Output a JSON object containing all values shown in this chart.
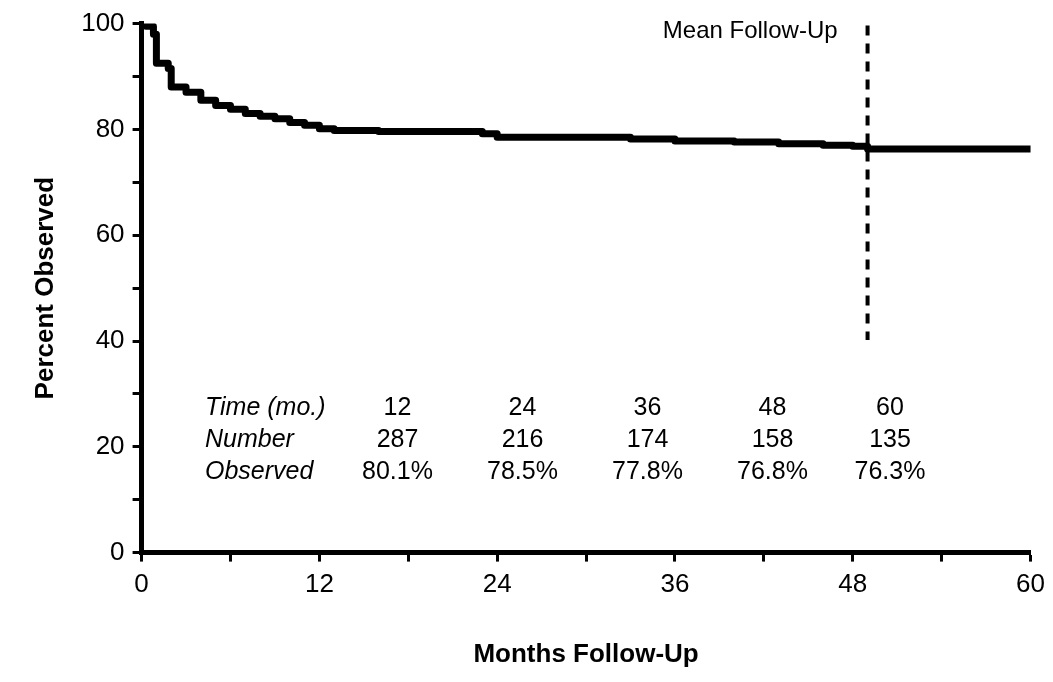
{
  "chart_data": {
    "type": "step",
    "xlabel": "Months Follow-Up",
    "ylabel": "Percent Observed",
    "xlim": [
      0,
      60
    ],
    "xticks": [
      0,
      {
        "value": 6,
        "label": null
      },
      12,
      {
        "value": 18,
        "label": null
      },
      24,
      {
        "value": 30,
        "label": null
      },
      36,
      {
        "value": 42,
        "label": null
      },
      48,
      {
        "value": 54,
        "label": null
      },
      60
    ],
    "ylim": [
      0,
      100
    ],
    "yticks": [
      0,
      {
        "value": 10,
        "label": null
      },
      20,
      {
        "value": 30,
        "label": null
      },
      40,
      {
        "value": 50,
        "label": null
      },
      60,
      {
        "value": 70,
        "label": null
      },
      80,
      {
        "value": 90,
        "label": null
      },
      100
    ],
    "grid": false,
    "legend": false,
    "marker": "none",
    "line_style": "solid",
    "series": [
      {
        "color": "#000000",
        "x": [
          0,
          0.3,
          0.8,
          1,
          1.8,
          2,
          3,
          4,
          5,
          6,
          7,
          8,
          9,
          10,
          11,
          12,
          13,
          16,
          20,
          23,
          24,
          30,
          33,
          36,
          40,
          43,
          46,
          48,
          49,
          60
        ],
        "values": [
          100,
          99.5,
          98,
          92.5,
          91.5,
          88,
          87,
          85.5,
          84.5,
          83.8,
          83,
          82.5,
          82,
          81.3,
          80.8,
          80.1,
          79.8,
          79.6,
          79.6,
          79.2,
          78.5,
          78.5,
          78.2,
          77.8,
          77.6,
          77.3,
          77,
          76.8,
          76.3,
          76.3
        ]
      }
    ],
    "ref_lines": [
      {
        "axis": "x",
        "value": 49,
        "label": "Mean Follow-Up",
        "color": "#000000",
        "line_style": "dashed"
      }
    ],
    "annotations": [
      "Time (mo.)",
      "12",
      "24",
      "36",
      "48",
      "60",
      "Number",
      "287",
      "216",
      "174",
      "158",
      "135",
      "Observed",
      "80.1%",
      "78.5%",
      "77.8%",
      "76.8%",
      "76.3%"
    ]
  }
}
